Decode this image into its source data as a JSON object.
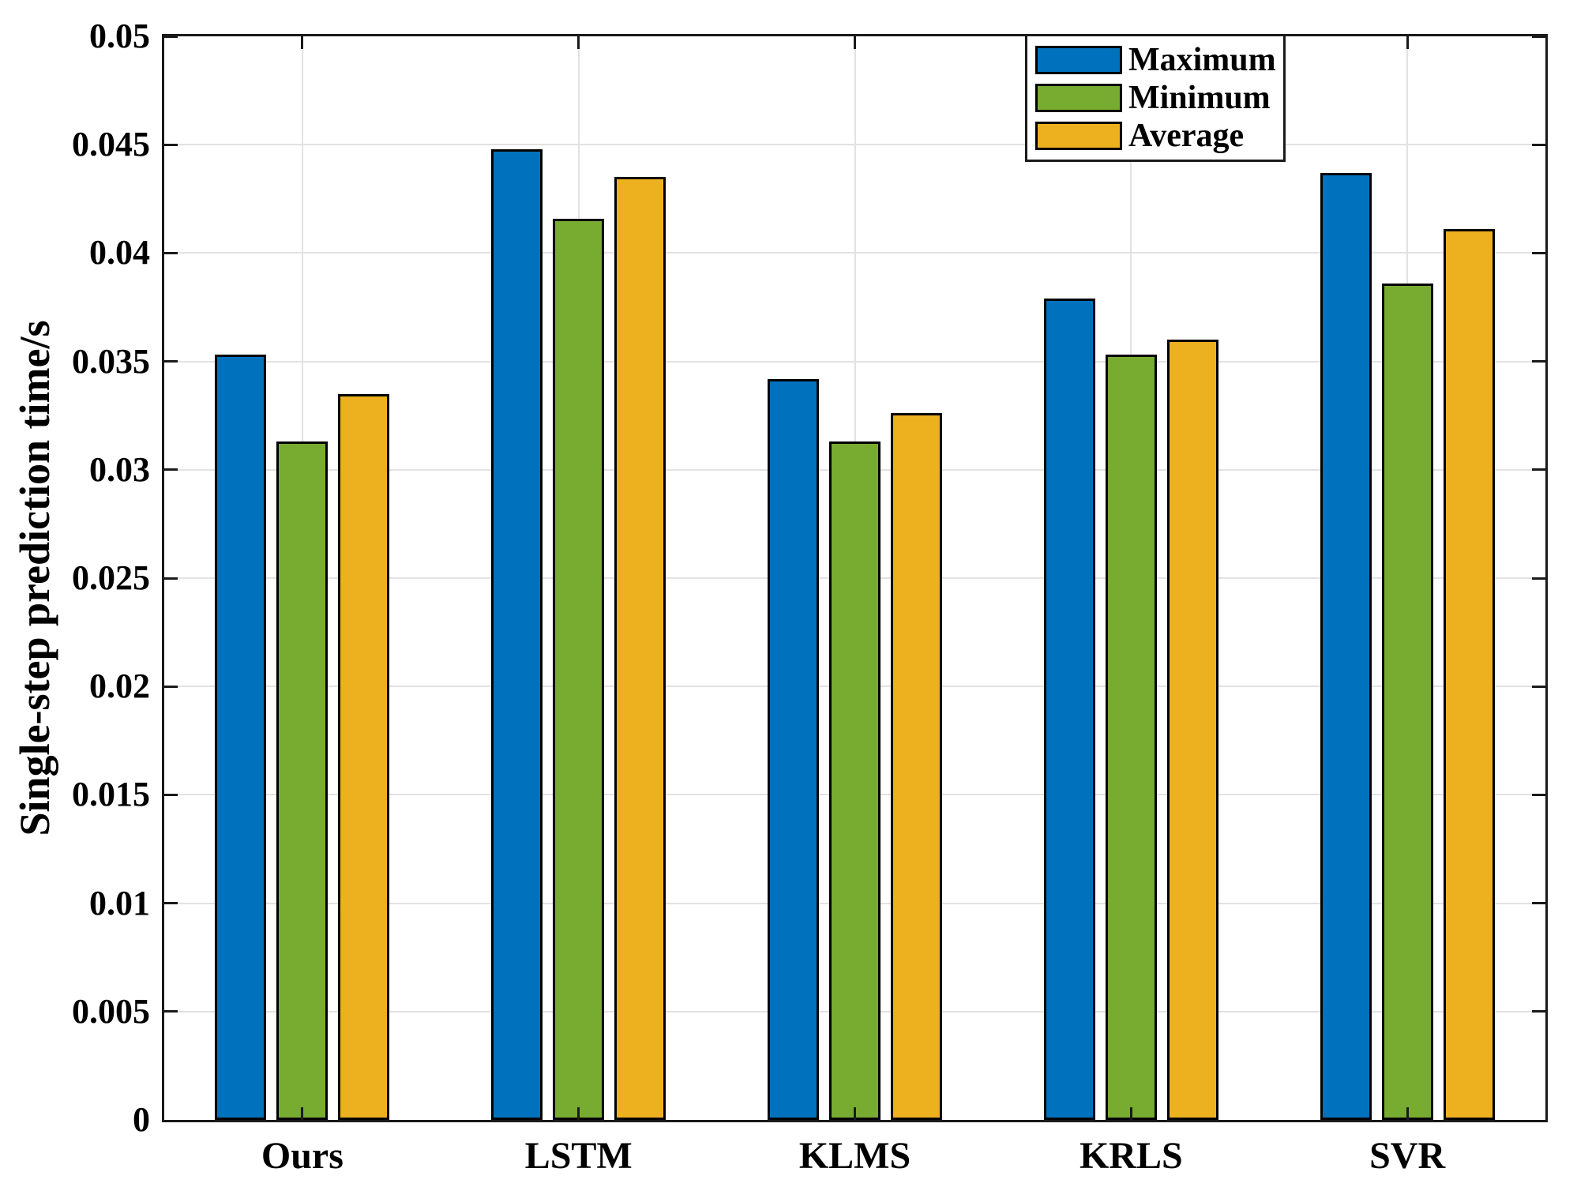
{
  "chart_data": {
    "type": "bar",
    "title": "",
    "xlabel": "",
    "ylabel": "Single-step prediction time/s",
    "categories": [
      "Ours",
      "LSTM",
      "KLMS",
      "KRLS",
      "SVR"
    ],
    "series": [
      {
        "name": "Maximum",
        "color": "#0072BD",
        "values": [
          0.0353,
          0.0448,
          0.0342,
          0.0379,
          0.0437
        ]
      },
      {
        "name": "Minimum",
        "color": "#77AC30",
        "values": [
          0.0313,
          0.0416,
          0.0313,
          0.0353,
          0.0386
        ]
      },
      {
        "name": "Average",
        "color": "#EDB120",
        "values": [
          0.0335,
          0.0435,
          0.0326,
          0.036,
          0.0411
        ]
      }
    ],
    "ylim": [
      0,
      0.05
    ],
    "ytick_values": [
      0,
      0.005,
      0.01,
      0.015,
      0.02,
      0.025,
      0.03,
      0.035,
      0.04,
      0.045,
      0.05
    ],
    "ytick_labels": [
      "0",
      "0.005",
      "0.01",
      "0.015",
      "0.02",
      "0.025",
      "0.03",
      "0.035",
      "0.04",
      "0.045",
      "0.05"
    ],
    "grid": "both",
    "legend_position": "top-right"
  },
  "colors": {
    "axis": "#1a1a1a",
    "grid": "#e2e2e2",
    "background": "#ffffff",
    "bar_edge": "#000000"
  }
}
